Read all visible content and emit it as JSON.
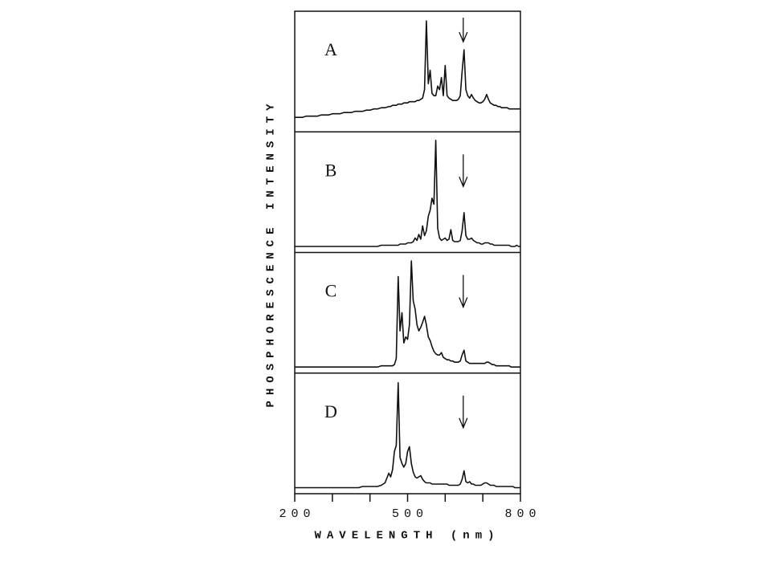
{
  "chart_data": {
    "type": "line",
    "stacked_panels": true,
    "color": "#111111",
    "xlabel": "WAVELENGTH (nm)",
    "ylabel": "PHOSPHORESCENCE INTENSITY",
    "xlim": [
      200,
      800
    ],
    "xticks": [
      200,
      500,
      800
    ],
    "xminor": [
      300,
      400,
      600,
      700
    ],
    "ylim": [
      0,
      100
    ],
    "arrow": 648,
    "x": [
      200,
      210,
      220,
      230,
      240,
      250,
      260,
      270,
      280,
      290,
      300,
      310,
      320,
      330,
      340,
      350,
      360,
      370,
      380,
      390,
      400,
      410,
      420,
      430,
      440,
      450,
      455,
      460,
      465,
      470,
      475,
      480,
      485,
      490,
      495,
      500,
      505,
      510,
      515,
      520,
      525,
      530,
      535,
      540,
      545,
      550,
      555,
      560,
      565,
      570,
      575,
      580,
      585,
      590,
      595,
      600,
      605,
      610,
      615,
      620,
      625,
      630,
      635,
      640,
      645,
      650,
      655,
      660,
      665,
      670,
      675,
      680,
      685,
      690,
      695,
      700,
      705,
      710,
      715,
      720,
      725,
      730,
      735,
      740,
      745,
      750,
      755,
      760,
      765,
      770,
      775,
      780,
      785,
      790,
      795,
      800
    ],
    "series": [
      {
        "name": "A",
        "values": [
          12,
          12,
          12,
          13,
          13,
          13,
          13,
          14,
          14,
          14,
          15,
          15,
          15,
          16,
          16,
          16,
          17,
          17,
          17,
          18,
          18,
          19,
          19,
          20,
          20,
          21,
          21,
          22,
          22,
          22,
          23,
          23,
          23,
          24,
          24,
          24,
          25,
          25,
          25,
          25,
          26,
          26,
          27,
          28,
          35,
          92,
          40,
          51,
          32,
          30,
          30,
          38,
          35,
          45,
          30,
          55,
          30,
          28,
          27,
          26,
          26,
          26,
          27,
          30,
          50,
          68,
          35,
          30,
          28,
          31,
          28,
          26,
          25,
          24,
          24,
          25,
          27,
          31,
          27,
          24,
          23,
          22,
          22,
          21,
          21,
          20,
          20,
          20,
          20,
          19,
          19,
          19,
          19,
          19,
          19,
          19
        ]
      },
      {
        "name": "B",
        "values": [
          5,
          5,
          5,
          5,
          5,
          5,
          5,
          5,
          5,
          5,
          5,
          5,
          5,
          5,
          5,
          5,
          5,
          5,
          5,
          5,
          5,
          5,
          5,
          6,
          6,
          6,
          6,
          6,
          6,
          6,
          6,
          7,
          7,
          7,
          7,
          8,
          8,
          8,
          9,
          12,
          10,
          15,
          11,
          22,
          14,
          18,
          30,
          35,
          45,
          40,
          93,
          20,
          12,
          10,
          11,
          12,
          10,
          11,
          19,
          10,
          9,
          9,
          9,
          10,
          18,
          33,
          14,
          11,
          11,
          12,
          10,
          9,
          8,
          8,
          7,
          7,
          8,
          8,
          8,
          7,
          7,
          6,
          6,
          6,
          6,
          6,
          6,
          6,
          6,
          6,
          5,
          5,
          5,
          6,
          5,
          5
        ]
      },
      {
        "name": "C",
        "values": [
          5,
          5,
          5,
          5,
          5,
          5,
          5,
          5,
          5,
          5,
          5,
          5,
          5,
          5,
          5,
          5,
          5,
          5,
          5,
          5,
          5,
          5,
          5,
          6,
          6,
          6,
          6,
          6,
          7,
          12,
          80,
          35,
          50,
          25,
          30,
          28,
          40,
          93,
          60,
          53,
          40,
          35,
          38,
          42,
          47,
          40,
          30,
          27,
          22,
          18,
          16,
          15,
          15,
          17,
          13,
          12,
          11,
          11,
          10,
          10,
          9,
          9,
          9,
          10,
          15,
          19,
          10,
          9,
          8,
          8,
          8,
          8,
          8,
          8,
          8,
          8,
          8,
          9,
          9,
          8,
          7,
          7,
          6,
          6,
          6,
          6,
          6,
          6,
          6,
          6,
          5,
          5,
          5,
          5,
          5,
          5
        ]
      },
      {
        "name": "D",
        "values": [
          5,
          5,
          5,
          5,
          5,
          5,
          5,
          5,
          5,
          5,
          5,
          5,
          5,
          5,
          5,
          5,
          5,
          5,
          6,
          6,
          6,
          6,
          6,
          7,
          9,
          17,
          14,
          20,
          35,
          40,
          92,
          30,
          25,
          22,
          25,
          35,
          39,
          25,
          18,
          14,
          13,
          14,
          15,
          12,
          10,
          9,
          9,
          9,
          8,
          8,
          8,
          8,
          8,
          8,
          8,
          8,
          8,
          7,
          7,
          7,
          7,
          7,
          7,
          8,
          12,
          19,
          10,
          9,
          10,
          8,
          8,
          7,
          7,
          7,
          7,
          8,
          9,
          9,
          8,
          7,
          7,
          7,
          6,
          6,
          6,
          6,
          6,
          6,
          6,
          6,
          6,
          6,
          5,
          5,
          5,
          5
        ]
      }
    ]
  }
}
